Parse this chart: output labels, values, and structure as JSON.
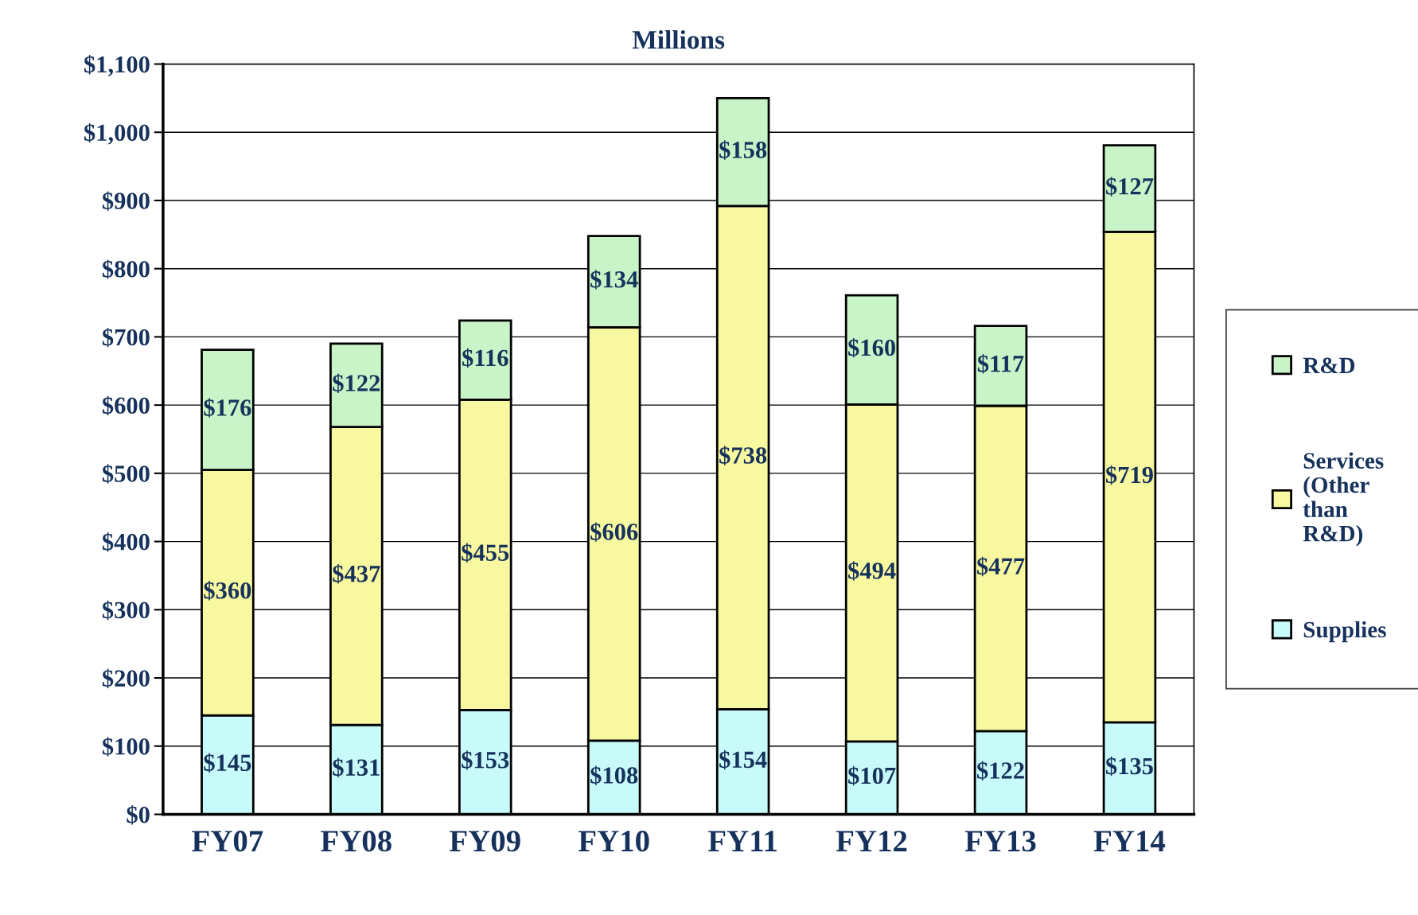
{
  "chart_data": {
    "type": "bar",
    "stacked": true,
    "title": "Millions",
    "categories": [
      "FY07",
      "FY08",
      "FY09",
      "FY10",
      "FY11",
      "FY12",
      "FY13",
      "FY14"
    ],
    "series": [
      {
        "name": "Supplies",
        "color": "#c8fafa",
        "values": [
          145,
          131,
          153,
          108,
          154,
          107,
          122,
          135
        ],
        "value_labels": [
          "$145",
          "$131",
          "$153",
          "$108",
          "$154",
          "$107",
          "$122",
          "$135"
        ]
      },
      {
        "name": "Services (Other than R&D)",
        "color": "#f8f8a0",
        "values": [
          360,
          437,
          455,
          606,
          738,
          494,
          477,
          719
        ],
        "value_labels": [
          "$360",
          "$437",
          "$455",
          "$606",
          "$738",
          "$494",
          "$477",
          "$719"
        ]
      },
      {
        "name": "R&D",
        "color": "#c8f4c8",
        "values": [
          176,
          122,
          116,
          134,
          158,
          160,
          117,
          127
        ],
        "value_labels": [
          "$176",
          "$122",
          "$116",
          "$134",
          "$158",
          "$160",
          "$117",
          "$127"
        ]
      }
    ],
    "ylim": [
      0,
      1100
    ],
    "yticks": [
      {
        "value": 0,
        "label": "$0"
      },
      {
        "value": 100,
        "label": "$100"
      },
      {
        "value": 200,
        "label": "$200"
      },
      {
        "value": 300,
        "label": "$300"
      },
      {
        "value": 400,
        "label": "$400"
      },
      {
        "value": 500,
        "label": "$500"
      },
      {
        "value": 600,
        "label": "$600"
      },
      {
        "value": 700,
        "label": "$700"
      },
      {
        "value": 800,
        "label": "$800"
      },
      {
        "value": 900,
        "label": "$900"
      },
      {
        "value": 1000,
        "label": "$1,000"
      },
      {
        "value": 1100,
        "label": "$1,100"
      }
    ],
    "grid": "y",
    "legend": "right"
  }
}
